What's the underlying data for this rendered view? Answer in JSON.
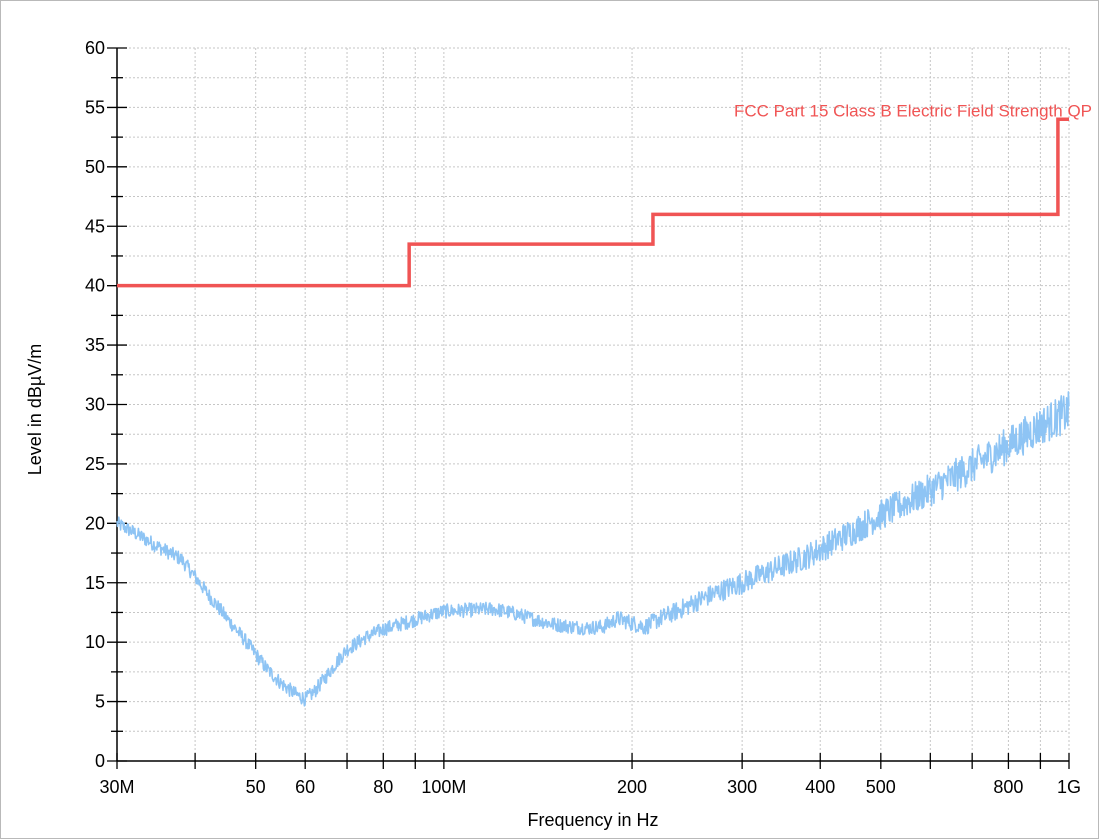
{
  "chart_data": {
    "type": "line",
    "xlabel": "Frequency in Hz",
    "ylabel": "Level in dBµV/m",
    "xscale": "log",
    "xlim": [
      30000000,
      1000000000
    ],
    "ylim": [
      0,
      60
    ],
    "grid": true,
    "x_ticks": [
      {
        "value": 30000000,
        "label": "30M"
      },
      {
        "value": 50000000,
        "label": "50"
      },
      {
        "value": 60000000,
        "label": "60"
      },
      {
        "value": 80000000,
        "label": "80"
      },
      {
        "value": 100000000,
        "label": "100M"
      },
      {
        "value": 200000000,
        "label": "200"
      },
      {
        "value": 300000000,
        "label": "300"
      },
      {
        "value": 400000000,
        "label": "400"
      },
      {
        "value": 500000000,
        "label": "500"
      },
      {
        "value": 800000000,
        "label": "800"
      },
      {
        "value": 1000000000,
        "label": "1G"
      }
    ],
    "y_ticks": [
      0,
      5,
      10,
      15,
      20,
      25,
      30,
      35,
      40,
      45,
      50,
      55,
      60
    ],
    "series": [
      {
        "name": "FCC Part 15 Class B Electric Field Strength QP",
        "kind": "limit",
        "color": "#f05454",
        "x": [
          30000000,
          88000000,
          88000000,
          216000000,
          216000000,
          960000000,
          960000000,
          1000000000
        ],
        "y": [
          40,
          40,
          43.5,
          43.5,
          46,
          46,
          54,
          54
        ]
      },
      {
        "name": "",
        "kind": "measurement",
        "color": "#8ec4f4",
        "x": [
          30000000,
          32000000,
          35000000,
          38000000,
          40000000,
          42000000,
          45000000,
          48000000,
          50000000,
          52000000,
          55000000,
          58000000,
          60000000,
          62000000,
          65000000,
          68000000,
          70000000,
          75000000,
          80000000,
          85000000,
          90000000,
          95000000,
          100000000,
          110000000,
          120000000,
          130000000,
          140000000,
          150000000,
          160000000,
          170000000,
          180000000,
          190000000,
          200000000,
          210000000,
          220000000,
          240000000,
          260000000,
          280000000,
          300000000,
          340000000,
          380000000,
          400000000,
          450000000,
          500000000,
          550000000,
          600000000,
          700000000,
          800000000,
          900000000,
          1000000000
        ],
        "y": [
          20,
          19.2,
          18,
          17,
          15.5,
          14,
          12,
          10.2,
          9,
          7.8,
          6.5,
          5.6,
          5.2,
          5.8,
          7.2,
          8.6,
          9.4,
          10.4,
          11.1,
          11.5,
          11.9,
          12.3,
          12.6,
          12.7,
          12.8,
          12.4,
          11.9,
          11.5,
          11.3,
          11.2,
          11.3,
          12,
          11.6,
          11.3,
          11.9,
          12.8,
          13.7,
          14.4,
          15,
          16.2,
          17.2,
          17.8,
          19.3,
          20.7,
          21.8,
          22.8,
          24.8,
          26.6,
          28.2,
          29.4
        ]
      }
    ]
  }
}
